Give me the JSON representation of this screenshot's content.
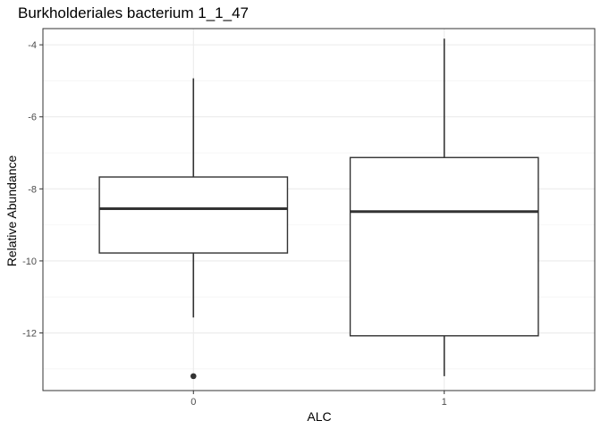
{
  "chart_data": {
    "type": "boxplot",
    "title": "Burkholderiales bacterium 1_1_47",
    "xlabel": "ALC",
    "ylabel": "Relative Abundance",
    "ylim": [
      -13.6,
      -3.55
    ],
    "y_ticks": [
      -12,
      -10,
      -8,
      -6,
      -4
    ],
    "y_minor_ticks": [
      -13,
      -11,
      -9,
      -7,
      -5
    ],
    "grid": true,
    "categories": [
      "0",
      "1"
    ],
    "boxes": [
      {
        "category": "0",
        "whisker_low": -11.57,
        "q1": -9.78,
        "median": -8.55,
        "q3": -7.67,
        "whisker_high": -4.93,
        "outliers": [
          -13.2
        ]
      },
      {
        "category": "1",
        "whisker_low": -13.2,
        "q1": -12.08,
        "median": -8.63,
        "q3": -7.13,
        "whisker_high": -3.83,
        "outliers": []
      }
    ]
  }
}
